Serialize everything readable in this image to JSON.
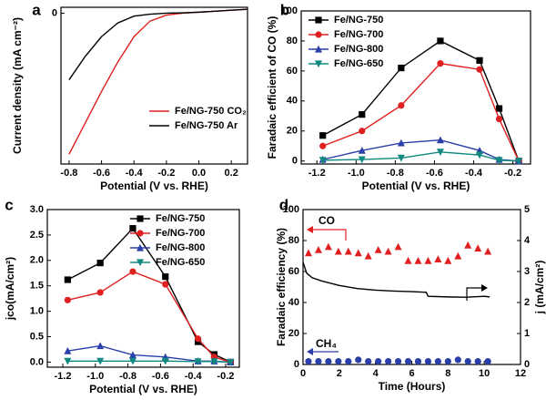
{
  "chart_data": [
    {
      "type": "line",
      "panel_label": "a",
      "xlabel": "Potential (V vs. RHE)",
      "ylabel": "Current density (mA cm⁻²)",
      "xlim": [
        -0.85,
        0.3
      ],
      "xticks": [
        -0.8,
        -0.6,
        -0.4,
        -0.2,
        {
          "value": 0,
          "label": "0.0"
        },
        0.2
      ],
      "ylim": [
        -7.7,
        0.3
      ],
      "yticks": [
        0
      ],
      "legend": "lower right",
      "x": [
        -0.8,
        -0.7,
        -0.6,
        -0.5,
        -0.4,
        -0.3,
        -0.2,
        -0.1,
        0,
        0.1,
        0.2,
        0.3
      ],
      "series": [
        {
          "name": "Fe/NG-750 CO₂",
          "color": "#e02020",
          "values": [
            -7.2,
            -5.6,
            -4.0,
            -2.5,
            -1.2,
            -0.4,
            -0.1,
            0,
            0.05,
            0.1,
            0.15,
            0.2
          ]
        },
        {
          "name": "Fe/NG-750 Ar",
          "color": "#000000",
          "values": [
            -3.4,
            -2.2,
            -1.2,
            -0.5,
            -0.15,
            -0.05,
            0,
            0.02,
            0.05,
            0.1,
            0.15,
            0.2
          ]
        }
      ]
    },
    {
      "type": "line",
      "panel_label": "b",
      "xlabel": "Potential (V vs. RHE)",
      "ylabel": "Faradaic efficient of CO (%)",
      "xlim": [
        -1.28,
        -0.11
      ],
      "xticks": [
        -1.2,
        {
          "value": -1,
          "label": "-1.0"
        },
        -0.8,
        -0.6,
        -0.4,
        -0.2
      ],
      "ylim": [
        -2,
        100
      ],
      "yticks": [
        0,
        20,
        40,
        60,
        80,
        100
      ],
      "legend": "upper left",
      "x": [
        -1.17,
        -0.97,
        -0.77,
        -0.57,
        -0.37,
        -0.27,
        -0.17
      ],
      "series": [
        {
          "name": "Fe/NG-750",
          "color": "#000000",
          "marker": "square",
          "values": [
            17,
            31,
            62,
            80,
            67,
            35,
            0
          ]
        },
        {
          "name": "Fe/NG-700",
          "color": "#e02020",
          "marker": "circle",
          "values": [
            10,
            20,
            37,
            65,
            61,
            28,
            0
          ]
        },
        {
          "name": "Fe/NG-800",
          "color": "#2a3fa8",
          "marker": "triangle",
          "values": [
            1,
            7,
            12,
            14,
            7,
            1,
            0
          ]
        },
        {
          "name": "Fe/NG-650",
          "color": "#108a80",
          "marker": "triangle-down",
          "values": [
            0.5,
            1,
            2,
            6,
            4,
            0.5,
            0
          ]
        }
      ]
    },
    {
      "type": "line",
      "panel_label": "c",
      "xlabel": "Potential (V vs. RHE)",
      "ylabel": "jco(mA/cm²)",
      "xlim": [
        -1.295,
        -0.116
      ],
      "xticks": [
        -1.2,
        {
          "value": -1,
          "label": "-1.0"
        },
        -0.8,
        -0.6,
        -0.4,
        -0.2
      ],
      "ylim": [
        -0.1,
        3.0
      ],
      "yticks": [
        {
          "value": 0,
          "label": "0.0"
        },
        0.5,
        {
          "value": 1,
          "label": "1.0"
        },
        1.5,
        {
          "value": 2,
          "label": "2.0"
        },
        2.5,
        {
          "value": 3,
          "label": "3.0"
        }
      ],
      "legend": "upper right",
      "x": [
        -1.17,
        -0.97,
        -0.77,
        -0.57,
        -0.37,
        -0.27,
        -0.17
      ],
      "series": [
        {
          "name": "Fe/NG-750",
          "color": "#000000",
          "marker": "square",
          "values": [
            1.62,
            1.95,
            2.63,
            1.68,
            0.4,
            0.15,
            0
          ]
        },
        {
          "name": "Fe/NG-700",
          "color": "#e02020",
          "marker": "circle",
          "values": [
            1.22,
            1.37,
            1.78,
            1.53,
            0.46,
            0.1,
            0
          ]
        },
        {
          "name": "Fe/NG-800",
          "color": "#2a3fa8",
          "marker": "triangle",
          "values": [
            0.22,
            0.32,
            0.14,
            0.1,
            0.02,
            0.02,
            0
          ]
        },
        {
          "name": "Fe/NG-650",
          "color": "#108a80",
          "marker": "triangle-down",
          "values": [
            0.02,
            0.02,
            0.02,
            0.02,
            0.01,
            0.01,
            0
          ]
        }
      ]
    },
    {
      "type": "scatter",
      "panel_label": "d",
      "xlabel": "Time (Hours)",
      "ylabel": "Faradaic efficiency (%)",
      "y2label": "j (mA/cm²)",
      "xlim": [
        0,
        12
      ],
      "xticks": [
        0,
        2,
        4,
        6,
        8,
        10,
        12
      ],
      "ylim": [
        0,
        100
      ],
      "yticks": [
        0,
        20,
        40,
        60,
        80,
        100
      ],
      "y2lim": [
        0,
        5
      ],
      "y2ticks": [
        0,
        1,
        2,
        3,
        4,
        5
      ],
      "annotations": [
        {
          "text": "CO",
          "color": "#e02020"
        },
        {
          "text": "CH₄",
          "color": "#2a3fa8"
        }
      ],
      "series": [
        {
          "color": "#e02020",
          "marker": "triangle",
          "x": [
            0.3,
            0.85,
            1.4,
            1.95,
            2.5,
            3.05,
            3.6,
            4.15,
            4.7,
            5.25,
            5.8,
            6.35,
            6.9,
            7.45,
            8.0,
            8.55,
            9.1,
            9.65,
            10.2
          ],
          "values": [
            72,
            74,
            76,
            73,
            73,
            72,
            70,
            74,
            73,
            76,
            67,
            67,
            67,
            68,
            67,
            70,
            77,
            75,
            73
          ]
        },
        {
          "color": "#2a3fa8",
          "marker": "circle",
          "x": [
            0.3,
            0.85,
            1.4,
            1.95,
            2.5,
            3.05,
            3.6,
            4.15,
            4.7,
            5.25,
            5.8,
            6.35,
            6.9,
            7.45,
            8.0,
            8.55,
            9.1,
            9.65,
            10.2
          ],
          "values": [
            2,
            2,
            2,
            2,
            2,
            3,
            2,
            2,
            2,
            2,
            2,
            2,
            2,
            2,
            2,
            3,
            2,
            2,
            2
          ]
        },
        {
          "type": "line",
          "axis": "y2",
          "color": "#000000",
          "x": [
            0,
            0.2,
            0.5,
            1,
            2,
            3,
            4,
            5,
            6,
            6.8,
            6.9,
            8,
            9,
            10,
            10.3
          ],
          "values": [
            3.3,
            2.95,
            2.8,
            2.7,
            2.55,
            2.45,
            2.4,
            2.37,
            2.35,
            2.33,
            2.2,
            2.18,
            2.17,
            2.2,
            2.18
          ]
        }
      ]
    }
  ]
}
